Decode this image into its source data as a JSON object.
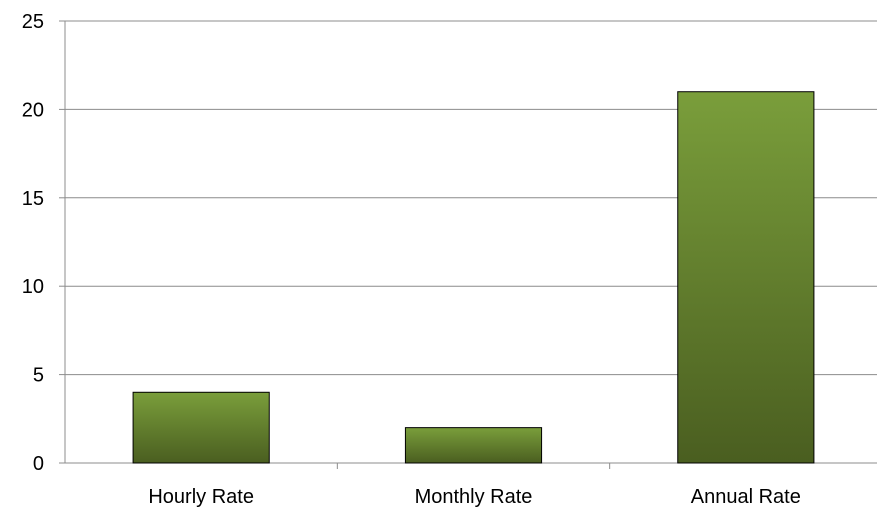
{
  "chart_data": {
    "type": "bar",
    "title": "",
    "xlabel": "",
    "ylabel": "",
    "categories": [
      "Hourly Rate",
      "Monthly Rate",
      "Annual Rate"
    ],
    "values": [
      4,
      2,
      21
    ],
    "ylim": [
      0,
      25
    ],
    "yticks": [
      "0",
      "5",
      "10",
      "15",
      "20",
      "25"
    ],
    "grid": true,
    "legend": "none",
    "colors": {
      "bar_top": "#7a9e3b",
      "bar_bottom": "#4a5e20",
      "bar_stroke": "#000000",
      "grid": "#8c8c8c",
      "axis": "#8c8c8c"
    }
  }
}
